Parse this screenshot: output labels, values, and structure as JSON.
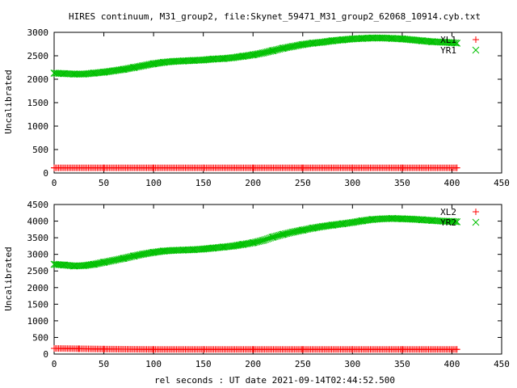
{
  "figure": {
    "title": "HIRES continuum, M31_group2, file:Skynet_59471_M31_group2_62068_10914.cyb.txt",
    "xlabel": "rel seconds : UT date 2021-09-14T02:44:52.500"
  },
  "chart_data": [
    {
      "type": "scatter",
      "ylabel": "Uncalibrated",
      "xlim": [
        0,
        450
      ],
      "ylim": [
        0,
        3000
      ],
      "xticks": [
        "0",
        "50",
        "100",
        "150",
        "200",
        "250",
        "300",
        "350",
        "400",
        "450"
      ],
      "yticks": [
        "0",
        "500",
        "1000",
        "1500",
        "2000",
        "2500",
        "3000"
      ],
      "legend_position": "top-right",
      "series": [
        {
          "name": "XL1",
          "marker": "+",
          "color": "#ff0000",
          "x": [
            0,
            50,
            100,
            150,
            200,
            250,
            300,
            350,
            405
          ],
          "y": [
            110,
            110,
            110,
            110,
            110,
            110,
            110,
            110,
            110
          ]
        },
        {
          "name": "YR1",
          "marker": "x",
          "color": "#00c000",
          "x": [
            0,
            10,
            20,
            30,
            40,
            50,
            60,
            70,
            80,
            90,
            100,
            110,
            120,
            130,
            140,
            150,
            160,
            170,
            180,
            190,
            200,
            210,
            220,
            230,
            240,
            250,
            260,
            270,
            280,
            290,
            300,
            310,
            320,
            330,
            340,
            350,
            360,
            370,
            380,
            390,
            400,
            405
          ],
          "y": [
            2130,
            2120,
            2110,
            2110,
            2130,
            2150,
            2180,
            2210,
            2250,
            2290,
            2330,
            2360,
            2380,
            2390,
            2400,
            2410,
            2430,
            2440,
            2460,
            2490,
            2520,
            2560,
            2610,
            2660,
            2700,
            2740,
            2770,
            2790,
            2820,
            2840,
            2860,
            2870,
            2880,
            2880,
            2870,
            2860,
            2840,
            2820,
            2800,
            2790,
            2780,
            2770
          ]
        }
      ]
    },
    {
      "type": "scatter",
      "ylabel": "Uncalibrated",
      "xlim": [
        0,
        450
      ],
      "ylim": [
        0,
        4500
      ],
      "xticks": [
        "0",
        "50",
        "100",
        "150",
        "200",
        "250",
        "300",
        "350",
        "400",
        "450"
      ],
      "yticks": [
        "0",
        "500",
        "1000",
        "1500",
        "2000",
        "2500",
        "3000",
        "3500",
        "4000",
        "4500"
      ],
      "legend_position": "top-right",
      "series": [
        {
          "name": "XL2",
          "marker": "+",
          "color": "#ff0000",
          "x": [
            0,
            25,
            50,
            100,
            150,
            200,
            250,
            300,
            350,
            405
          ],
          "y": [
            170,
            160,
            150,
            140,
            140,
            140,
            140,
            140,
            140,
            140
          ]
        },
        {
          "name": "YR2",
          "marker": "x",
          "color": "#00c000",
          "x": [
            0,
            10,
            20,
            30,
            40,
            50,
            60,
            70,
            80,
            90,
            100,
            110,
            120,
            130,
            140,
            150,
            160,
            170,
            180,
            190,
            200,
            210,
            220,
            230,
            240,
            250,
            260,
            270,
            280,
            290,
            300,
            310,
            320,
            330,
            340,
            350,
            360,
            370,
            380,
            390,
            400,
            405
          ],
          "y": [
            2700,
            2680,
            2650,
            2660,
            2700,
            2760,
            2820,
            2880,
            2950,
            3010,
            3060,
            3100,
            3120,
            3130,
            3140,
            3160,
            3190,
            3220,
            3250,
            3300,
            3350,
            3420,
            3520,
            3600,
            3670,
            3730,
            3790,
            3840,
            3880,
            3920,
            3960,
            4010,
            4050,
            4070,
            4080,
            4070,
            4060,
            4040,
            4020,
            4000,
            3990,
            3980
          ]
        }
      ]
    }
  ]
}
